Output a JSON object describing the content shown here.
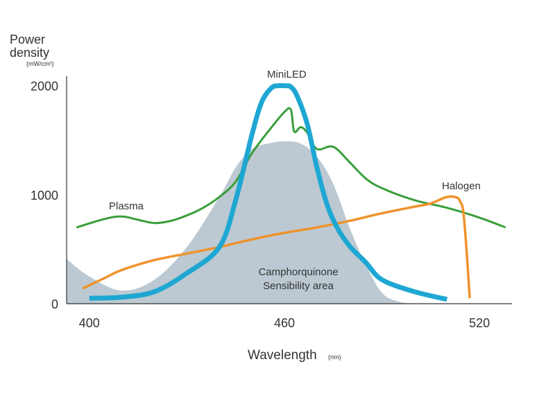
{
  "chart_data": {
    "type": "line",
    "ylabel": "Power density",
    "ylabel_unit": "(mW/cm²)",
    "xlabel": "Wavelength",
    "xlabel_unit": "(nm)",
    "xlim": [
      393,
      530
    ],
    "ylim": [
      0,
      2100
    ],
    "x_ticks": [
      "400",
      "460",
      "520"
    ],
    "y_ticks": [
      "0",
      "1000",
      "2000"
    ],
    "area": {
      "label_lines": [
        "Camphorquinone",
        "Sensibility area"
      ],
      "color": "#bcc9d2",
      "x": [
        393,
        400,
        410,
        420,
        430,
        440,
        445,
        450,
        455,
        460,
        465,
        470,
        475,
        480,
        485,
        490,
        495,
        500
      ],
      "values": [
        410,
        250,
        120,
        220,
        520,
        980,
        1250,
        1420,
        1470,
        1490,
        1470,
        1350,
        1100,
        700,
        360,
        100,
        20,
        0
      ]
    },
    "series": [
      {
        "name": "Plasma",
        "color": "#3a9e3a",
        "x": [
          396,
          405,
          410,
          415,
          420,
          425,
          430,
          435,
          440,
          445,
          450,
          455,
          460,
          462,
          463,
          465,
          467,
          470,
          475,
          480,
          485,
          490,
          500,
          510,
          520,
          528
        ],
        "values": [
          700,
          780,
          800,
          770,
          740,
          760,
          810,
          880,
          980,
          1120,
          1380,
          1580,
          1760,
          1780,
          1580,
          1620,
          1570,
          1420,
          1440,
          1300,
          1150,
          1060,
          950,
          880,
          790,
          700
        ]
      },
      {
        "name": "MiniLED",
        "color": "#1ea7d3",
        "x": [
          400,
          410,
          420,
          430,
          440,
          445,
          450,
          453,
          456,
          458,
          460,
          462,
          464,
          467,
          470,
          473,
          476,
          480,
          485,
          490,
          500,
          510
        ],
        "values": [
          50,
          60,
          110,
          280,
          520,
          950,
          1550,
          1850,
          1980,
          2000,
          2000,
          1990,
          1900,
          1650,
          1250,
          920,
          710,
          530,
          380,
          220,
          110,
          40
        ]
      },
      {
        "name": "Halogen",
        "color": "#ef922b",
        "x": [
          398,
          405,
          410,
          420,
          430,
          440,
          450,
          460,
          470,
          480,
          490,
          500,
          505,
          510,
          513,
          514,
          515,
          516,
          517
        ],
        "values": [
          140,
          240,
          310,
          400,
          460,
          520,
          590,
          650,
          700,
          760,
          830,
          890,
          920,
          980,
          975,
          940,
          850,
          500,
          50
        ]
      }
    ]
  }
}
